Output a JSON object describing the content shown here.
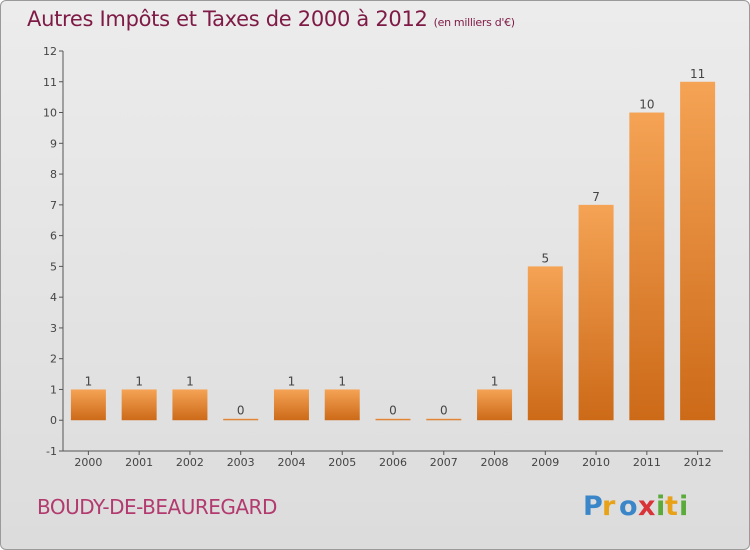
{
  "title": "Autres Impôts et Taxes de 2000 à 2012",
  "subtitle": "(en milliers d'€)",
  "commune": "BOUDY-DE-BEAUREGARD",
  "logo": {
    "letters": [
      "P",
      "r",
      "o",
      "x",
      "i",
      "t",
      "i"
    ]
  },
  "colors": {
    "title": "#7e1a45",
    "bar_top": "#f5a355",
    "bar_bottom": "#cc6a18"
  },
  "chart_data": {
    "type": "bar",
    "title": "Autres Impôts et Taxes de 2000 à 2012",
    "subtitle": "(en milliers d'€)",
    "categories": [
      "2000",
      "2001",
      "2002",
      "2003",
      "2004",
      "2005",
      "2006",
      "2007",
      "2008",
      "2009",
      "2010",
      "2011",
      "2012"
    ],
    "values": [
      1,
      1,
      1,
      0,
      1,
      1,
      0,
      0,
      1,
      5,
      7,
      10,
      11
    ],
    "data_labels": [
      "1",
      "1",
      "1",
      "0",
      "1",
      "1",
      "0",
      "0",
      "1",
      "5",
      "7",
      "10",
      "11"
    ],
    "ylim": [
      -1,
      12
    ],
    "yticks": [
      "-1",
      "0",
      "1",
      "2",
      "3",
      "4",
      "5",
      "6",
      "7",
      "8",
      "9",
      "10",
      "11",
      "12"
    ],
    "grid": false,
    "legend": "none"
  }
}
